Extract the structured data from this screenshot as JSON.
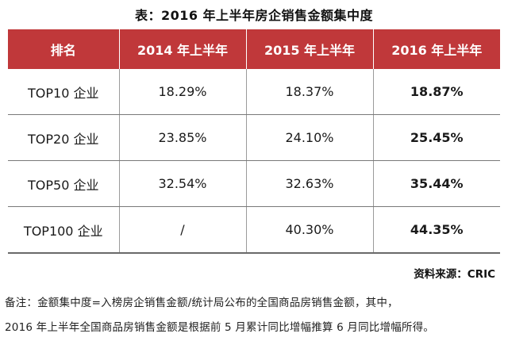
{
  "title": "表：2016 年上半年房企销售金额集中度",
  "table": {
    "headers": [
      "排名",
      "2014 年上半年",
      "2015 年上半年",
      "2016 年上半年"
    ],
    "rows": [
      {
        "rank": "TOP10 企业",
        "y2014": "18.29%",
        "y2015": "18.37%",
        "y2016": "18.87%"
      },
      {
        "rank": "TOP20 企业",
        "y2014": "23.85%",
        "y2015": "24.10%",
        "y2016": "25.45%"
      },
      {
        "rank": "TOP50 企业",
        "y2014": "32.54%",
        "y2015": "32.63%",
        "y2016": "35.44%"
      },
      {
        "rank": "TOP100 企业",
        "y2014": "/",
        "y2015": "40.30%",
        "y2016": "44.35%"
      }
    ]
  },
  "source": "资料来源：CRIC",
  "note": {
    "line1": "备注：金额集中度=入榜房企销售金额/统计局公布的全国商品房销售金额，其中，",
    "line2": "2016 年上半年全国商品房销售金额是根据前 5 月累计同比增幅推算 6 月同比增幅所得。"
  },
  "colors": {
    "header_bg": "#c0383a",
    "header_text": "#ffffff"
  }
}
